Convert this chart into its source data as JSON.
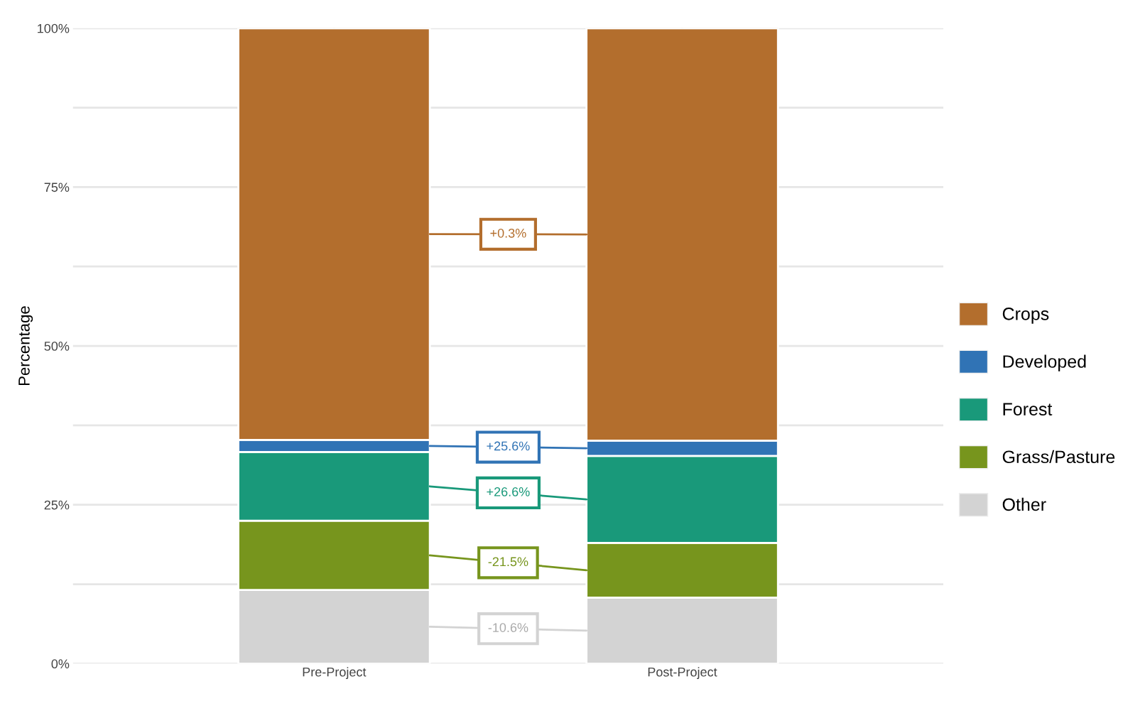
{
  "chart_data": {
    "type": "bar",
    "stacked": true,
    "ylabel": "Percentage",
    "categories": [
      "Pre-Project",
      "Post-Project"
    ],
    "series": [
      {
        "name": "Other",
        "color": "#d3d3d3",
        "values": [
          11.6,
          10.4
        ]
      },
      {
        "name": "Grass/Pasture",
        "color": "#77951d",
        "values": [
          10.9,
          8.6
        ]
      },
      {
        "name": "Forest",
        "color": "#19997a",
        "values": [
          10.8,
          13.7
        ]
      },
      {
        "name": "Developed",
        "color": "#3073b5",
        "values": [
          1.9,
          2.4
        ]
      },
      {
        "name": "Crops",
        "color": "#b36e2d",
        "values": [
          64.8,
          64.9
        ]
      }
    ],
    "annotations": [
      "-10.6%",
      "-21.5%",
      "+26.6%",
      "+25.6%",
      "+0.3%"
    ],
    "ylim": [
      0,
      100
    ],
    "yticks": [
      {
        "value": 0,
        "label": "0%"
      },
      {
        "value": 12.5,
        "label": null
      },
      {
        "value": 25,
        "label": "25%"
      },
      {
        "value": 37.5,
        "label": null
      },
      {
        "value": 50,
        "label": "50%"
      },
      {
        "value": 62.5,
        "label": null
      },
      {
        "value": 75,
        "label": "75%"
      },
      {
        "value": 87.5,
        "label": null
      },
      {
        "value": 100,
        "label": "100%"
      }
    ],
    "grid": true,
    "legend": "right"
  }
}
